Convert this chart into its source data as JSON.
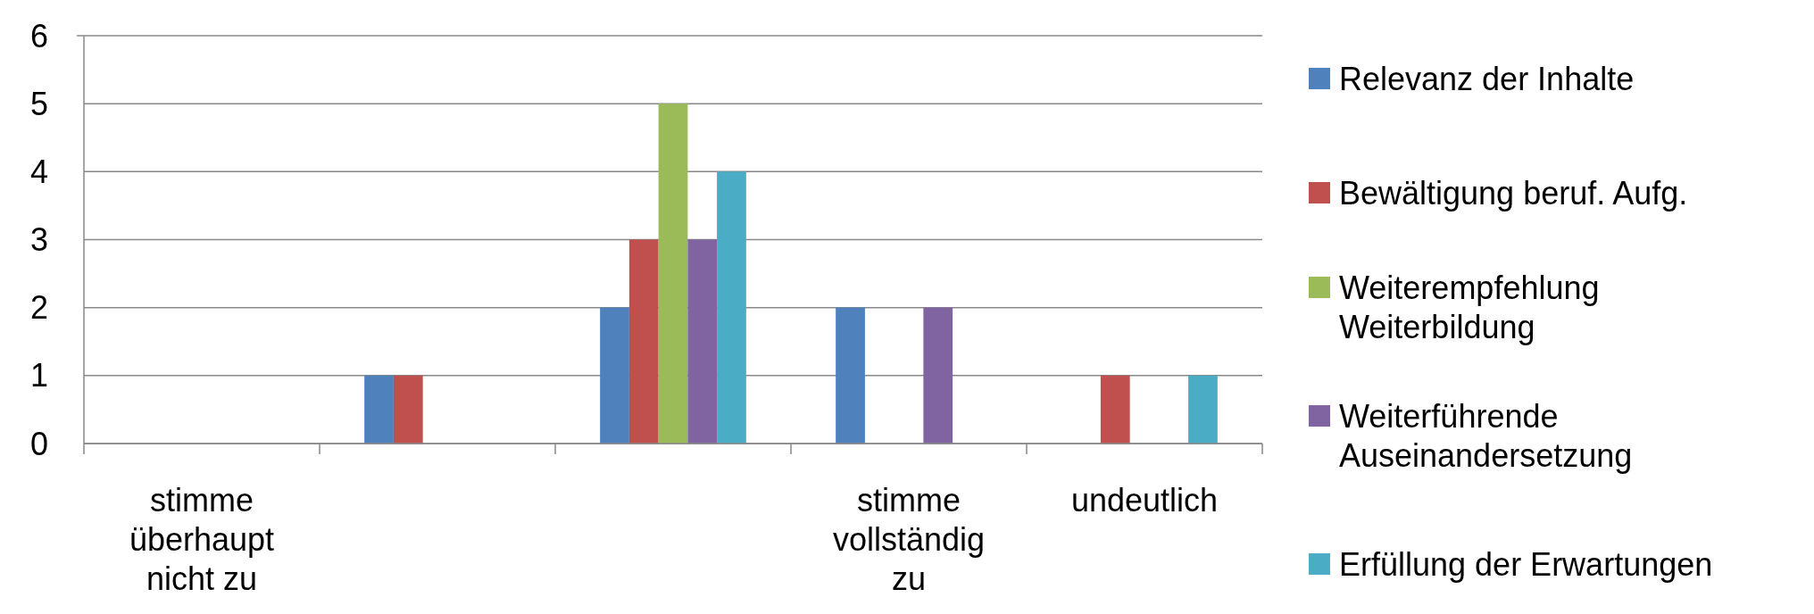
{
  "chart_data": {
    "type": "bar",
    "categories": [
      "stimme überhaupt nicht zu",
      null,
      null,
      "stimme vollständig zu",
      "undeutlich"
    ],
    "series": [
      {
        "name": "Relevanz der Inhalte",
        "color": "#4f81bd",
        "values": [
          0,
          1,
          2,
          2,
          0
        ]
      },
      {
        "name": "Bewältigung beruf. Aufg.",
        "color": "#c0504d",
        "values": [
          0,
          1,
          3,
          0,
          1
        ]
      },
      {
        "name": "Weiterempfehlung Weiterbildung",
        "color": "#9bbb59",
        "values": [
          0,
          0,
          5,
          0,
          0
        ]
      },
      {
        "name": "Weiterführende Auseinandersetzung",
        "color": "#8064a2",
        "values": [
          0,
          0,
          3,
          2,
          0
        ]
      },
      {
        "name": "Erfüllung der Erwartungen",
        "color": "#4bacc6",
        "values": [
          0,
          0,
          4,
          0,
          1
        ]
      }
    ],
    "ylim": [
      0,
      6
    ],
    "yticks": [
      0,
      1,
      2,
      3,
      4,
      5,
      6
    ],
    "grid": "y",
    "legend": "right"
  }
}
